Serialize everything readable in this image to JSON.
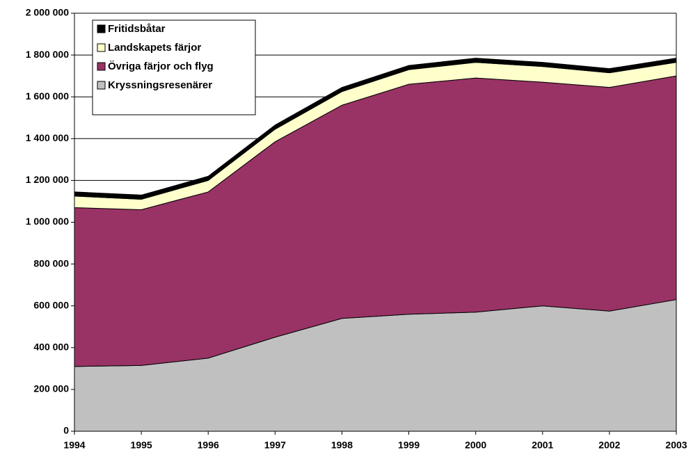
{
  "chart_data": {
    "type": "stacked_area",
    "categories": [
      "1994",
      "1995",
      "1996",
      "1997",
      "1998",
      "1999",
      "2000",
      "2001",
      "2002",
      "2003"
    ],
    "series": [
      {
        "name": "Kryssningsresenärer",
        "color": "#c0c0c0",
        "values": [
          310000,
          315000,
          350000,
          450000,
          540000,
          560000,
          570000,
          600000,
          575000,
          630000
        ]
      },
      {
        "name": "Övriga färjor och flyg",
        "color": "#993366",
        "values": [
          760000,
          745000,
          795000,
          935000,
          1020000,
          1100000,
          1120000,
          1070000,
          1070000,
          1070000
        ]
      },
      {
        "name": "Landskapets färjor",
        "color": "#ffffcc",
        "values": [
          55000,
          50000,
          55000,
          60000,
          65000,
          70000,
          75000,
          75000,
          70000,
          65000
        ]
      },
      {
        "name": "Fritidsbåtar",
        "color": "#000000",
        "values": [
          20000,
          20000,
          20000,
          20000,
          20000,
          20000,
          20000,
          20000,
          20000,
          20000
        ]
      }
    ],
    "ylim": [
      0,
      2000000
    ],
    "yticks": [
      0,
      {
        "value": 200000,
        "label": "200 000"
      },
      {
        "value": 400000,
        "label": "400 000"
      },
      {
        "value": 600000,
        "label": "600 000"
      },
      {
        "value": 800000,
        "label": "800 000"
      },
      {
        "value": 1000000,
        "label": "1 000 000"
      },
      {
        "value": 1200000,
        "label": "1 200 000"
      },
      {
        "value": 1400000,
        "label": "1 400 000"
      },
      {
        "value": 1600000,
        "label": "1 600 000"
      },
      {
        "value": 1800000,
        "label": "1 800 000"
      },
      {
        "value": 2000000,
        "label": "2 000 000"
      }
    ],
    "grid": true,
    "legend": "top-left"
  }
}
